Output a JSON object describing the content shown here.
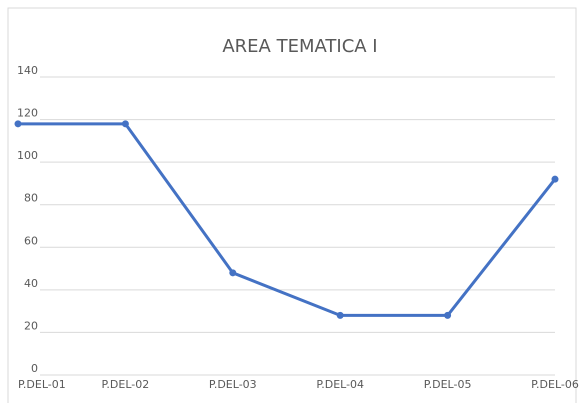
{
  "chart_data": {
    "type": "line",
    "title": "AREA TEMATICA I",
    "categories": [
      "P.DEL-01",
      "P.DEL-02",
      "P.DEL-03",
      "P.DEL-04",
      "P.DEL-05",
      "P.DEL-06"
    ],
    "values": [
      118,
      118,
      48,
      28,
      28,
      92
    ],
    "color": "#4472c4",
    "ylim": [
      0,
      140
    ],
    "yticks": [
      0,
      20,
      40,
      60,
      80,
      100,
      120,
      140
    ],
    "grid": true
  }
}
